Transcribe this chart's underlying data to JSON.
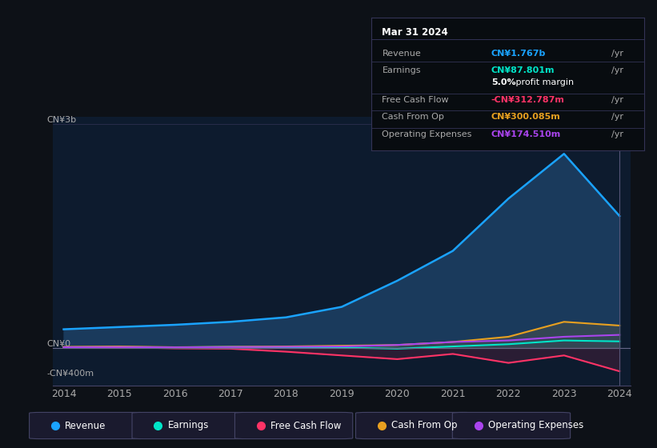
{
  "background_color": "#0d1117",
  "plot_bg_color": "#0d1b2e",
  "ylabel_top": "CN¥3b",
  "ylabel_zero": "CN¥0",
  "ylabel_neg": "-CN¥400m",
  "x_labels": [
    "2014",
    "2015",
    "2016",
    "2017",
    "2018",
    "2019",
    "2020",
    "2021",
    "2022",
    "2023",
    "2024"
  ],
  "series": {
    "Revenue": {
      "color": "#1aa3ff",
      "fill_color": "#1a3a5c",
      "values": [
        250,
        280,
        310,
        350,
        410,
        550,
        900,
        1300,
        2000,
        2600,
        1767
      ]
    },
    "Earnings": {
      "color": "#00e5c8",
      "values": [
        10,
        12,
        8,
        15,
        10,
        5,
        -10,
        20,
        50,
        100,
        88
      ]
    },
    "Free Cash Flow": {
      "color": "#ff3366",
      "values": [
        5,
        10,
        -5,
        -10,
        -50,
        -100,
        -150,
        -80,
        -200,
        -100,
        -313
      ]
    },
    "Cash From Op": {
      "color": "#e8a020",
      "values": [
        15,
        20,
        10,
        15,
        20,
        30,
        40,
        80,
        150,
        350,
        300
      ]
    },
    "Operating Expenses": {
      "color": "#aa44ee",
      "values": [
        10,
        12,
        8,
        12,
        15,
        20,
        40,
        80,
        100,
        150,
        175
      ]
    }
  },
  "tooltip": {
    "date": "Mar 31 2024",
    "rows": [
      {
        "label": "Revenue",
        "value": "CN¥1.767b",
        "color": "#1aa3ff",
        "suffix": "/yr"
      },
      {
        "label": "Earnings",
        "value": "CN¥87.801m",
        "color": "#00e5c8",
        "suffix": "/yr"
      },
      {
        "label": "",
        "value": "5.0%",
        "color": "white",
        "suffix": " profit margin"
      },
      {
        "label": "Free Cash Flow",
        "value": "-CN¥312.787m",
        "color": "#ff3366",
        "suffix": "/yr"
      },
      {
        "label": "Cash From Op",
        "value": "CN¥300.085m",
        "color": "#e8a020",
        "suffix": "/yr"
      },
      {
        "label": "Operating Expenses",
        "value": "CN¥174.510m",
        "color": "#aa44ee",
        "suffix": "/yr"
      }
    ]
  },
  "legend": [
    {
      "label": "Revenue",
      "color": "#1aa3ff"
    },
    {
      "label": "Earnings",
      "color": "#00e5c8"
    },
    {
      "label": "Free Cash Flow",
      "color": "#ff3366"
    },
    {
      "label": "Cash From Op",
      "color": "#e8a020"
    },
    {
      "label": "Operating Expenses",
      "color": "#aa44ee"
    }
  ]
}
